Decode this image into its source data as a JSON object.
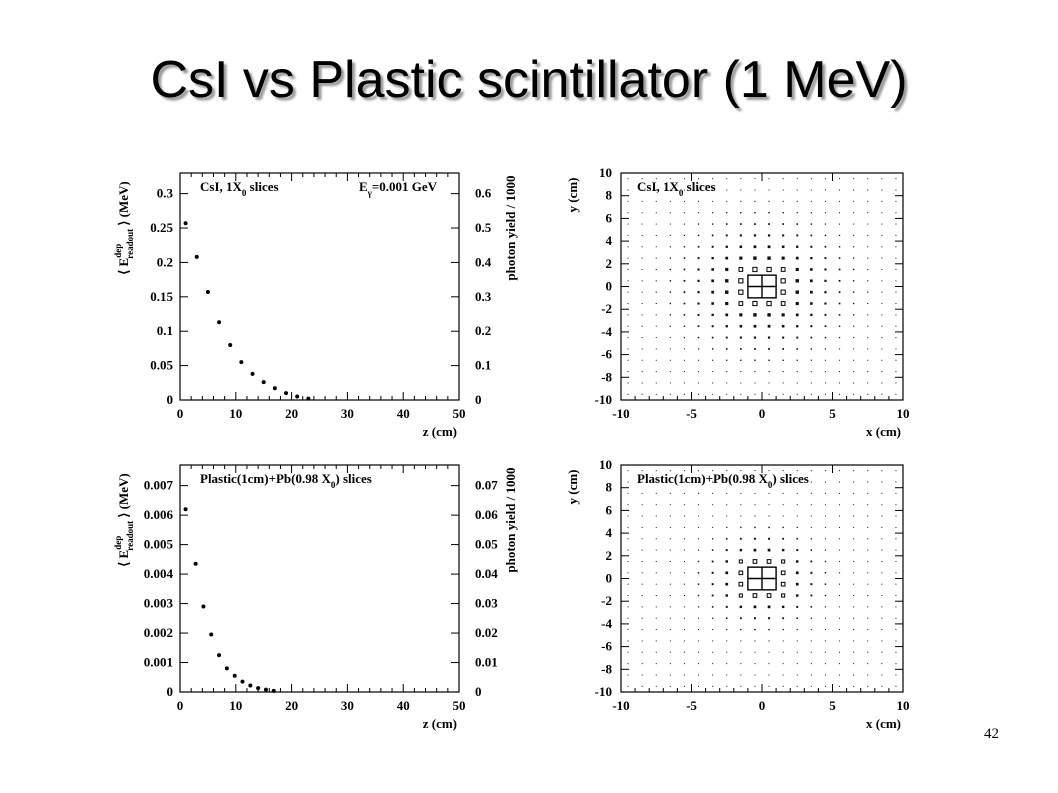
{
  "slide": {
    "title": "CsI vs Plastic scintillator (1 MeV)",
    "page_number": "42"
  },
  "chart_data": [
    {
      "id": "csi-profile",
      "type": "scatter",
      "label": "CsI, 1X",
      "label_sub": "0",
      "label_tail": " slices",
      "energy_label": "E",
      "energy_sub": "γ",
      "energy_tail": "=0.001 GeV",
      "xlabel": "z (cm)",
      "ylabel_left_main": "E",
      "ylabel_left_sup": "dep",
      "ylabel_left_sub": "readout",
      "ylabel_left_unit": "(MeV)",
      "ylabel_right": "photon yield / 1000",
      "xlim": [
        0,
        50
      ],
      "ylim": [
        0,
        0.33
      ],
      "xticks": [
        "0",
        "10",
        "20",
        "30",
        "40",
        "50"
      ],
      "yticks": [
        "0",
        "0.05",
        "0.1",
        "0.15",
        "0.2",
        "0.25",
        "0.3"
      ],
      "y2ticks": [
        "0",
        "0.1",
        "0.2",
        "0.3",
        "0.4",
        "0.5",
        "0.6"
      ],
      "x": [
        1,
        3,
        5,
        7,
        9,
        11,
        13,
        15,
        17,
        19,
        21,
        23
      ],
      "y": [
        0.257,
        0.208,
        0.157,
        0.113,
        0.08,
        0.055,
        0.038,
        0.026,
        0.017,
        0.01,
        0.005,
        0.002
      ]
    },
    {
      "id": "csi-xy",
      "type": "scatter",
      "label": "CsI, 1X",
      "label_sub": "0",
      "label_tail": " slices",
      "xlabel": "x (cm)",
      "ylabel": "y (cm)",
      "xlim": [
        -10,
        10
      ],
      "ylim": [
        -10,
        10
      ],
      "xticks": [
        "-10",
        "-5",
        "0",
        "5",
        "10"
      ],
      "yticks": [
        "-10",
        "-8",
        "-6",
        "-4",
        "-2",
        "0",
        "2",
        "4",
        "6",
        "8",
        "10"
      ],
      "grid_step": 1,
      "spread": 4.5
    },
    {
      "id": "plastic-profile",
      "type": "scatter",
      "label": "Plastic(1cm)+Pb(0.98 X",
      "label_sub": "0",
      "label_tail": ") slices",
      "xlabel": "z (cm)",
      "ylabel_left_main": "E",
      "ylabel_left_sup": "dep",
      "ylabel_left_sub": "readout",
      "ylabel_left_unit": "(MeV)",
      "ylabel_right": "photon yield / 1000",
      "xlim": [
        0,
        50
      ],
      "ylim": [
        0,
        0.0077
      ],
      "xticks": [
        "0",
        "10",
        "20",
        "30",
        "40",
        "50"
      ],
      "yticks": [
        "0",
        "0.001",
        "0.002",
        "0.003",
        "0.004",
        "0.005",
        "0.006",
        "0.007"
      ],
      "y2ticks": [
        "0",
        "0.01",
        "0.02",
        "0.03",
        "0.04",
        "0.05",
        "0.06",
        "0.07"
      ],
      "x": [
        1,
        2.8,
        4.2,
        5.6,
        7,
        8.4,
        9.8,
        11.2,
        12.6,
        14,
        15.4,
        16.8
      ],
      "y": [
        0.0062,
        0.00435,
        0.0029,
        0.00195,
        0.00125,
        0.0008,
        0.00055,
        0.00035,
        0.00022,
        0.00013,
        8e-05,
        4e-05
      ]
    },
    {
      "id": "plastic-xy",
      "type": "scatter",
      "label": "Plastic(1cm)+Pb(0.98 X",
      "label_sub": "0",
      "label_tail": ") slices",
      "xlabel": "x (cm)",
      "ylabel": "y (cm)",
      "xlim": [
        -10,
        10
      ],
      "ylim": [
        -10,
        10
      ],
      "xticks": [
        "-10",
        "-5",
        "0",
        "5",
        "10"
      ],
      "yticks": [
        "-10",
        "-8",
        "-6",
        "-4",
        "-2",
        "0",
        "2",
        "4",
        "6",
        "8",
        "10"
      ],
      "grid_step": 1,
      "spread": 3.2
    }
  ]
}
